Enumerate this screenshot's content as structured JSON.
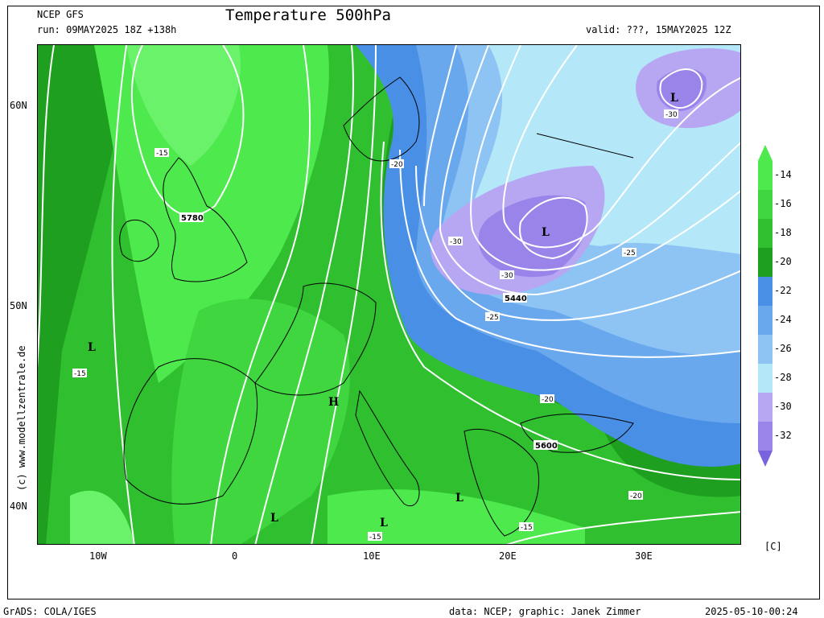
{
  "header": {
    "model": "NCEP GFS",
    "run": "run: 09MAY2025 18Z +138h",
    "title": "Temperature 500hPa",
    "valid": "valid: ???, 15MAY2025 12Z"
  },
  "footer": {
    "left": "GrADS: COLA/IGES",
    "credit": "data: NCEP; graphic: Janek Zimmer",
    "timestamp": "2025-05-10-00:24"
  },
  "side_credit": "(c) www.modellzentrale.de",
  "axes": {
    "lat_labels": [
      "60N",
      "50N",
      "40N"
    ],
    "lon_labels": [
      "10W",
      "0",
      "10E",
      "20E",
      "30E"
    ]
  },
  "colorbar": {
    "unit": "[C]",
    "labels": [
      "-14",
      "-16",
      "-18",
      "-20",
      "-22",
      "-24",
      "-26",
      "-28",
      "-30",
      "-32"
    ],
    "colors": [
      "#4de94d",
      "#3fd63f",
      "#2fbf2f",
      "#1f9f1f",
      "#4a8fe6",
      "#6aa8ee",
      "#8ec4f4",
      "#b4e8f8",
      "#b7a6f2",
      "#9a84ea",
      "#7a64de"
    ]
  },
  "map": {
    "pressure_labels": [
      "5780",
      "5440",
      "5600"
    ],
    "isotherm_labels": [
      "-15",
      "-20",
      "-25",
      "-30"
    ],
    "markers": [
      {
        "type": "L",
        "name": "low-east"
      },
      {
        "type": "L",
        "name": "low-poland"
      },
      {
        "type": "L",
        "name": "low-atlantic"
      },
      {
        "type": "H",
        "name": "high-central"
      },
      {
        "type": "L",
        "name": "low-spain"
      },
      {
        "type": "L",
        "name": "low-italy"
      },
      {
        "type": "L",
        "name": "low-balkans"
      }
    ]
  }
}
